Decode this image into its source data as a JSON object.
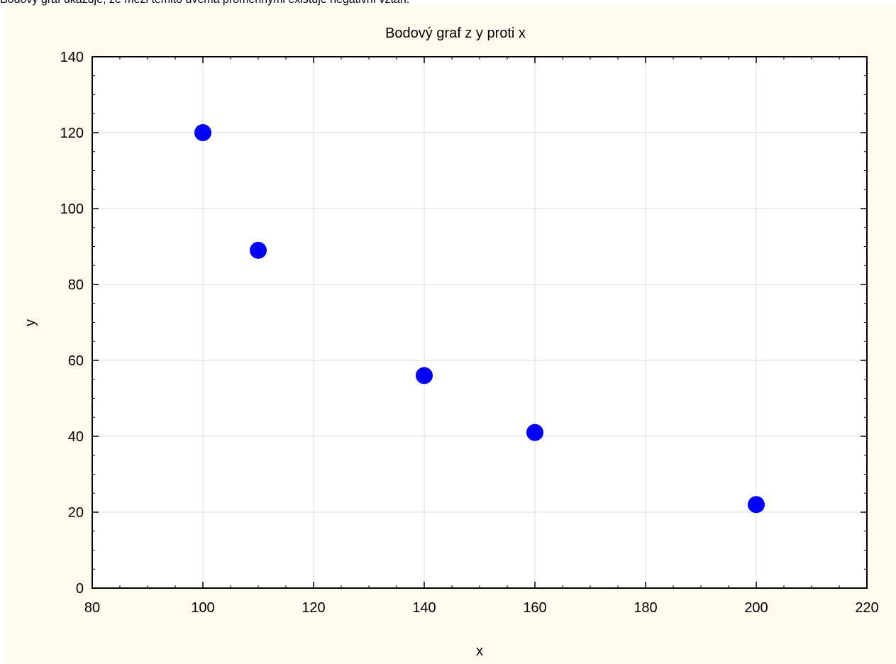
{
  "top_banner": "Bodový graf ukazuje, že mezi těmito dvěma proměnnými existuje negativní vztah.",
  "chart_data": {
    "type": "scatter",
    "title": "Bodový graf z y proti x",
    "xlabel": "x",
    "ylabel": "y",
    "xlim": [
      80,
      220
    ],
    "ylim": [
      0,
      140
    ],
    "x_ticks": [
      "80",
      "100",
      "120",
      "140",
      "160",
      "180",
      "200",
      "220"
    ],
    "y_ticks": [
      "0",
      "20",
      "40",
      "60",
      "80",
      "100",
      "120",
      "140"
    ],
    "grid": true,
    "legend": "none",
    "points": [
      {
        "x": 100,
        "y": 120
      },
      {
        "x": 110,
        "y": 89
      },
      {
        "x": 140,
        "y": 56
      },
      {
        "x": 160,
        "y": 41
      },
      {
        "x": 200,
        "y": 22
      }
    ]
  },
  "colors": {
    "background": "#fffaee",
    "plot_area": "#ffffff",
    "marker": "#0000ff",
    "grid": "#dcdcdc",
    "axis": "#000000"
  }
}
